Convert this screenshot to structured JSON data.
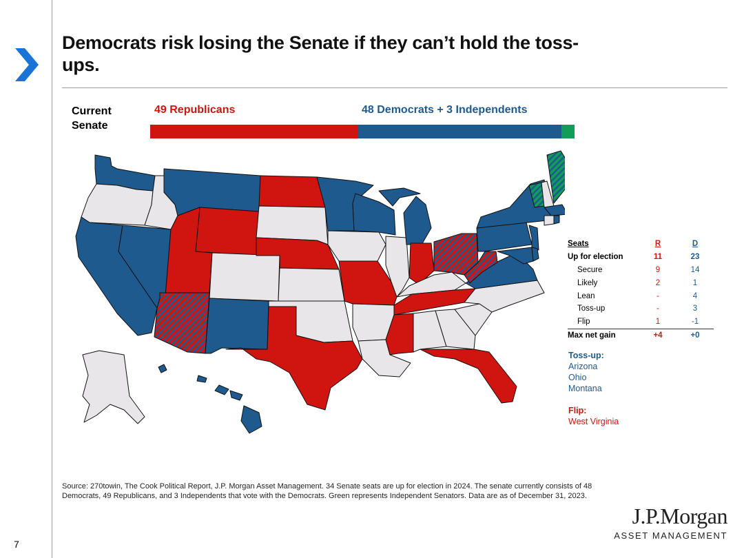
{
  "page_number": "7",
  "title": "Democrats risk losing the Senate if they can’t hold the toss-ups.",
  "senate": {
    "label": "Current Senate",
    "rep_label": "49 Republicans",
    "dem_label": "48 Democrats + 3 Independents",
    "republicans": 49,
    "democrats": 48,
    "independents": 3
  },
  "colors": {
    "republican": "#d0140f",
    "democrat": "#1e5a8e",
    "independent": "#0f9d58",
    "not_up": "#e8e6e9"
  },
  "seats_table": {
    "headers": [
      "Seats",
      "R",
      "D"
    ],
    "rows": [
      {
        "label": "Up for election",
        "r": "11",
        "d": "23",
        "style": "bold"
      },
      {
        "label": "Secure",
        "r": "9",
        "d": "14",
        "style": "indent"
      },
      {
        "label": "Likely",
        "r": "2",
        "d": "1",
        "style": "indent"
      },
      {
        "label": "Lean",
        "r": "-",
        "d": "4",
        "style": "indent"
      },
      {
        "label": "Toss-up",
        "r": "-",
        "d": "3",
        "style": "indent"
      },
      {
        "label": "Flip",
        "r": "1",
        "d": "-1",
        "style": "indent"
      },
      {
        "label": "Max net gain",
        "r": "+4",
        "d": "+0",
        "style": "total"
      }
    ]
  },
  "tossup": {
    "heading": "Toss-up:",
    "states": [
      "Arizona",
      "Ohio",
      "Montana"
    ]
  },
  "flip": {
    "heading": "Flip:",
    "states": [
      "West Virginia"
    ]
  },
  "source": "Source: 270towin, The Cook Political Report, J.P. Morgan Asset Management. 34 Senate seats are up for election in 2024. The senate currently consists of 48 Democrats, 49 Republicans, and 3 Independents that vote with the Democrats.  Green represents Independent Senators. Data are as of December 31, 2023.",
  "logo": {
    "main": "J.P.Morgan",
    "sub": "ASSET MANAGEMENT"
  }
}
